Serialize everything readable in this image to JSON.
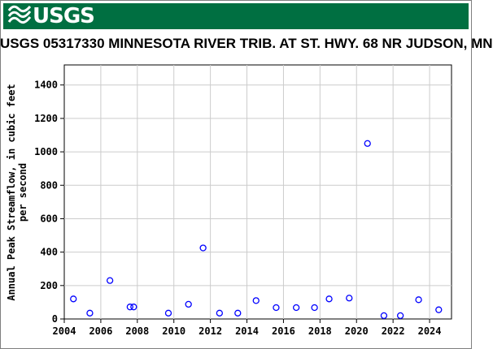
{
  "header": {
    "logo_text": "USGS",
    "banner_color": "#006f41"
  },
  "chart_data": {
    "type": "scatter",
    "title": "USGS 05317330 MINNESOTA RIVER TRIB. AT ST. HWY. 68 NR JUDSON, MN",
    "ylabel_line1": "Annual Peak Streamflow, in cubic feet",
    "ylabel_line2": "per second",
    "xlabel": "",
    "xlim": [
      2004,
      2025.2
    ],
    "ylim": [
      0,
      1520
    ],
    "xticks": [
      2004,
      2006,
      2008,
      2010,
      2012,
      2014,
      2016,
      2018,
      2020,
      2022,
      2024
    ],
    "yticks": [
      0,
      200,
      400,
      600,
      800,
      1000,
      1200,
      1400
    ],
    "grid": true,
    "marker_color": "#0000ff",
    "points": [
      {
        "x": 2004.5,
        "y": 120
      },
      {
        "x": 2005.4,
        "y": 35
      },
      {
        "x": 2006.5,
        "y": 230
      },
      {
        "x": 2007.6,
        "y": 72
      },
      {
        "x": 2007.8,
        "y": 72
      },
      {
        "x": 2009.7,
        "y": 35
      },
      {
        "x": 2010.8,
        "y": 88
      },
      {
        "x": 2011.6,
        "y": 425
      },
      {
        "x": 2012.5,
        "y": 35
      },
      {
        "x": 2013.5,
        "y": 35
      },
      {
        "x": 2014.5,
        "y": 110
      },
      {
        "x": 2015.6,
        "y": 68
      },
      {
        "x": 2016.7,
        "y": 68
      },
      {
        "x": 2017.7,
        "y": 68
      },
      {
        "x": 2018.5,
        "y": 120
      },
      {
        "x": 2019.6,
        "y": 125
      },
      {
        "x": 2020.6,
        "y": 1050
      },
      {
        "x": 2021.5,
        "y": 20
      },
      {
        "x": 2022.4,
        "y": 20
      },
      {
        "x": 2023.4,
        "y": 115
      },
      {
        "x": 2024.5,
        "y": 55
      }
    ]
  }
}
